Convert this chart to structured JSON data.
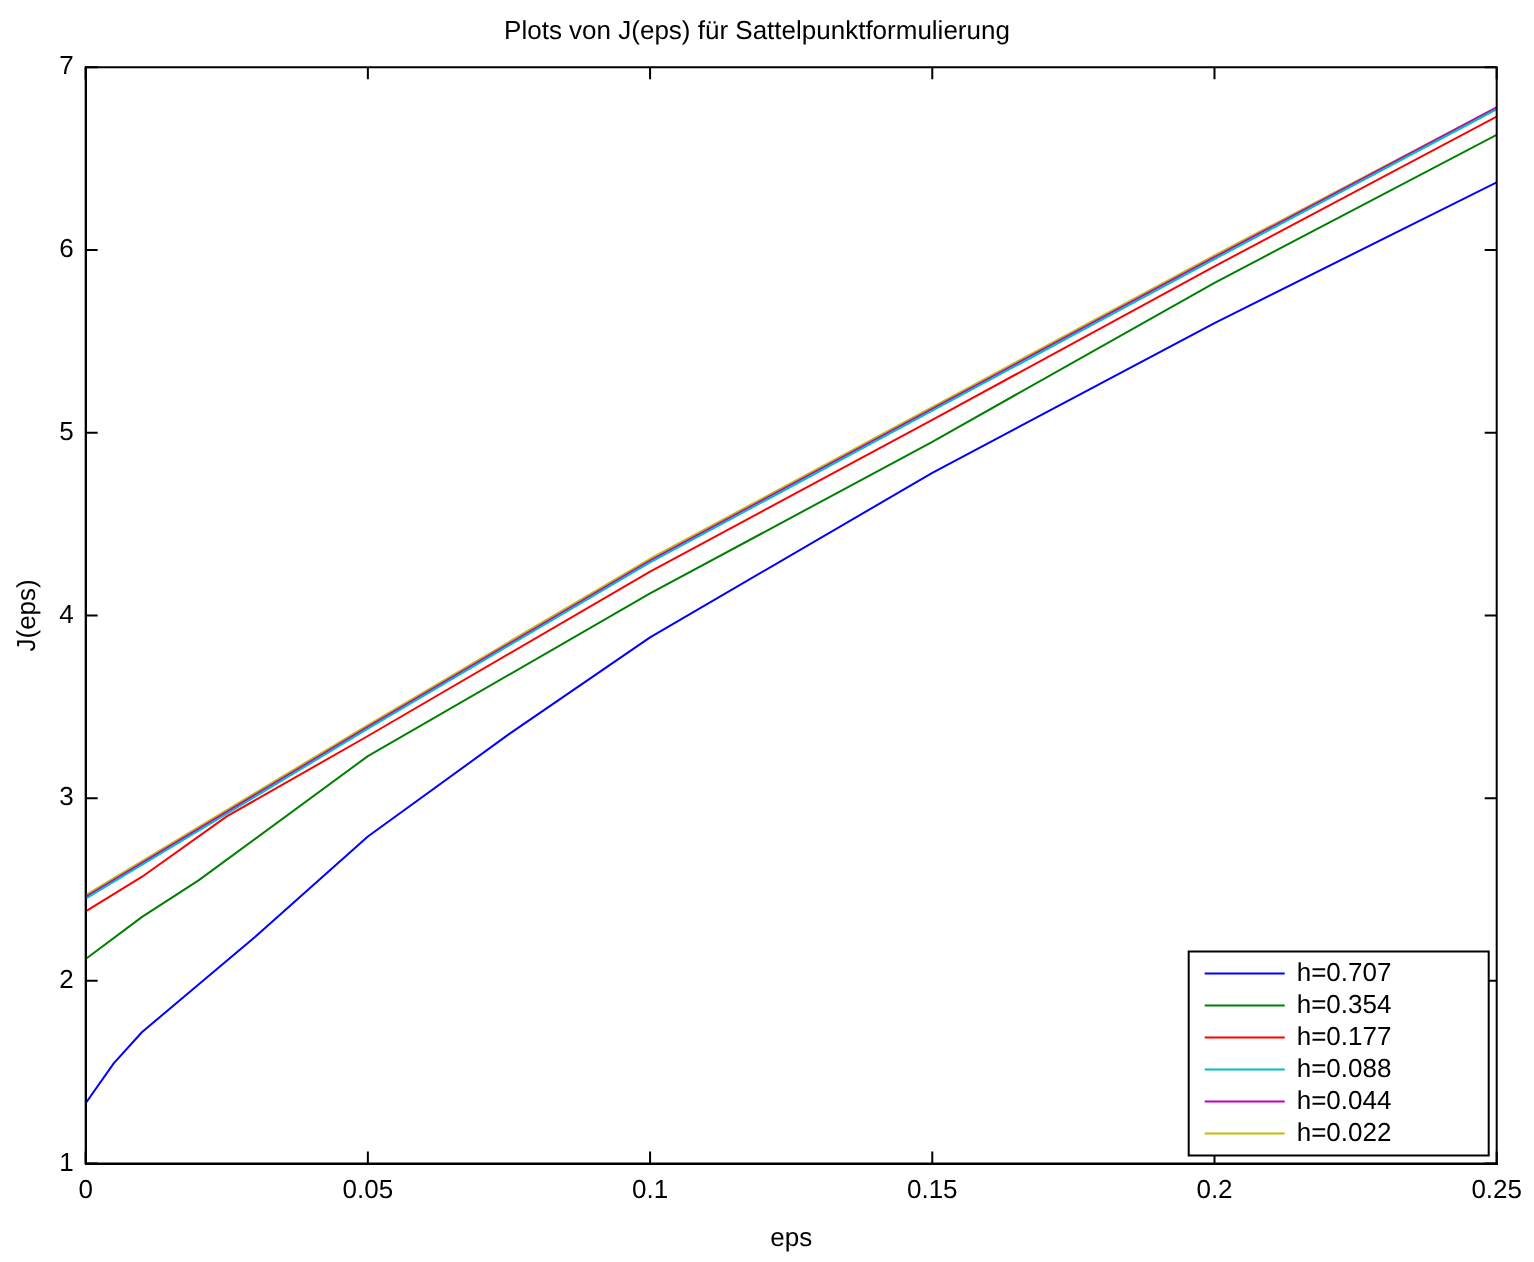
{
  "chart_data": {
    "type": "line",
    "title": "Plots von J(eps) für Sattelpunktformulierung",
    "xlabel": "eps",
    "ylabel": "J(eps)",
    "xlim": [
      0,
      0.25
    ],
    "xticks": [
      0,
      0.05,
      0.1,
      0.15,
      0.2,
      0.25
    ],
    "ylim": [
      1,
      7
    ],
    "yticks": [
      1,
      2,
      3,
      4,
      5,
      6,
      7
    ],
    "grid": false,
    "legend": "bottom right",
    "marker": "none",
    "line_style": "solid",
    "series": [
      {
        "name": "h=0.707",
        "color": "#0000ff",
        "x": [
          0,
          0.005,
          0.01,
          0.02,
          0.03,
          0.05,
          0.075,
          0.1,
          0.15,
          0.2,
          0.25
        ],
        "values": [
          1.33,
          1.55,
          1.72,
          1.98,
          2.24,
          2.79,
          3.35,
          3.88,
          4.78,
          5.6,
          6.37
        ]
      },
      {
        "name": "h=0.354",
        "color": "#008000",
        "x": [
          0,
          0.01,
          0.02,
          0.05,
          0.1,
          0.15,
          0.2,
          0.25
        ],
        "values": [
          2.12,
          2.35,
          2.55,
          3.23,
          4.12,
          4.95,
          5.82,
          6.63
        ]
      },
      {
        "name": "h=0.177",
        "color": "#ff0000",
        "x": [
          0,
          0.01,
          0.025,
          0.05,
          0.1,
          0.15,
          0.2,
          0.25
        ],
        "values": [
          2.38,
          2.57,
          2.9,
          3.34,
          4.24,
          5.07,
          5.91,
          6.73
        ]
      },
      {
        "name": "h=0.088",
        "color": "#00bfbf",
        "x": [
          0,
          0.05,
          0.1,
          0.15,
          0.2,
          0.25
        ],
        "values": [
          2.45,
          3.38,
          4.29,
          5.12,
          5.95,
          6.77
        ]
      },
      {
        "name": "h=0.044",
        "color": "#bf00bf",
        "x": [
          0,
          0.05,
          0.1,
          0.15,
          0.2,
          0.25
        ],
        "values": [
          2.46,
          3.39,
          4.3,
          5.13,
          5.96,
          6.78
        ]
      },
      {
        "name": "h=0.022",
        "color": "#bfbf00",
        "x": [
          0,
          0.05,
          0.1,
          0.15,
          0.2,
          0.25
        ],
        "values": [
          2.47,
          3.4,
          4.31,
          5.14,
          5.97,
          6.78
        ]
      }
    ]
  }
}
